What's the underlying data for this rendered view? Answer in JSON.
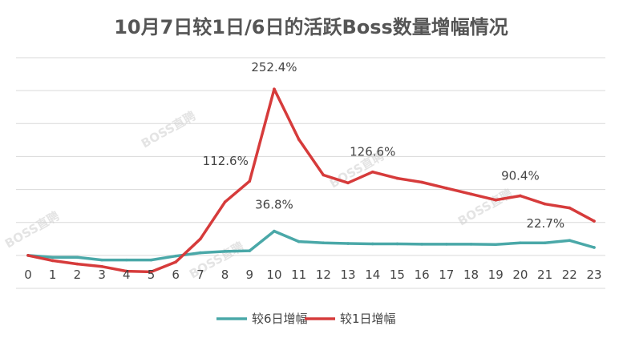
{
  "chart_data": {
    "type": "line",
    "title": "10月7日较1日/6日的活跃Boss数量增幅情况",
    "categories": [
      "0",
      "1",
      "2",
      "3",
      "4",
      "5",
      "6",
      "7",
      "8",
      "9",
      "10",
      "11",
      "12",
      "13",
      "14",
      "15",
      "16",
      "17",
      "18",
      "19",
      "20",
      "21",
      "22",
      "23"
    ],
    "series": [
      {
        "name": "较6日增幅",
        "color": "#4aa8a8",
        "values": [
          0,
          -3,
          -3,
          -7,
          -7,
          -7,
          -1,
          4,
          6,
          7,
          36.8,
          21,
          19,
          18,
          17.5,
          17.5,
          17,
          17,
          17,
          16.5,
          19,
          19,
          22.7,
          12
        ]
      },
      {
        "name": "较1日增幅",
        "color": "#d63b3b",
        "values": [
          0,
          -8,
          -13,
          -17,
          -24,
          -25,
          -10,
          25,
          81,
          112.6,
          252.4,
          176,
          122,
          110,
          126.6,
          117,
          111,
          102,
          93,
          84,
          90.4,
          78,
          72,
          52
        ]
      }
    ],
    "data_labels": [
      {
        "series": 1,
        "index": 10,
        "text": "252.4%"
      },
      {
        "series": 1,
        "index": 9,
        "text": "112.6%"
      },
      {
        "series": 1,
        "index": 14,
        "text": "126.6%"
      },
      {
        "series": 1,
        "index": 20,
        "text": "90.4%"
      },
      {
        "series": 0,
        "index": 10,
        "text": "36.8%"
      },
      {
        "series": 0,
        "index": 22,
        "text": "22.7%"
      }
    ],
    "ylim": [
      -50,
      300
    ],
    "grid": true,
    "legend": "bottom",
    "watermark": "BOSS直聘"
  }
}
